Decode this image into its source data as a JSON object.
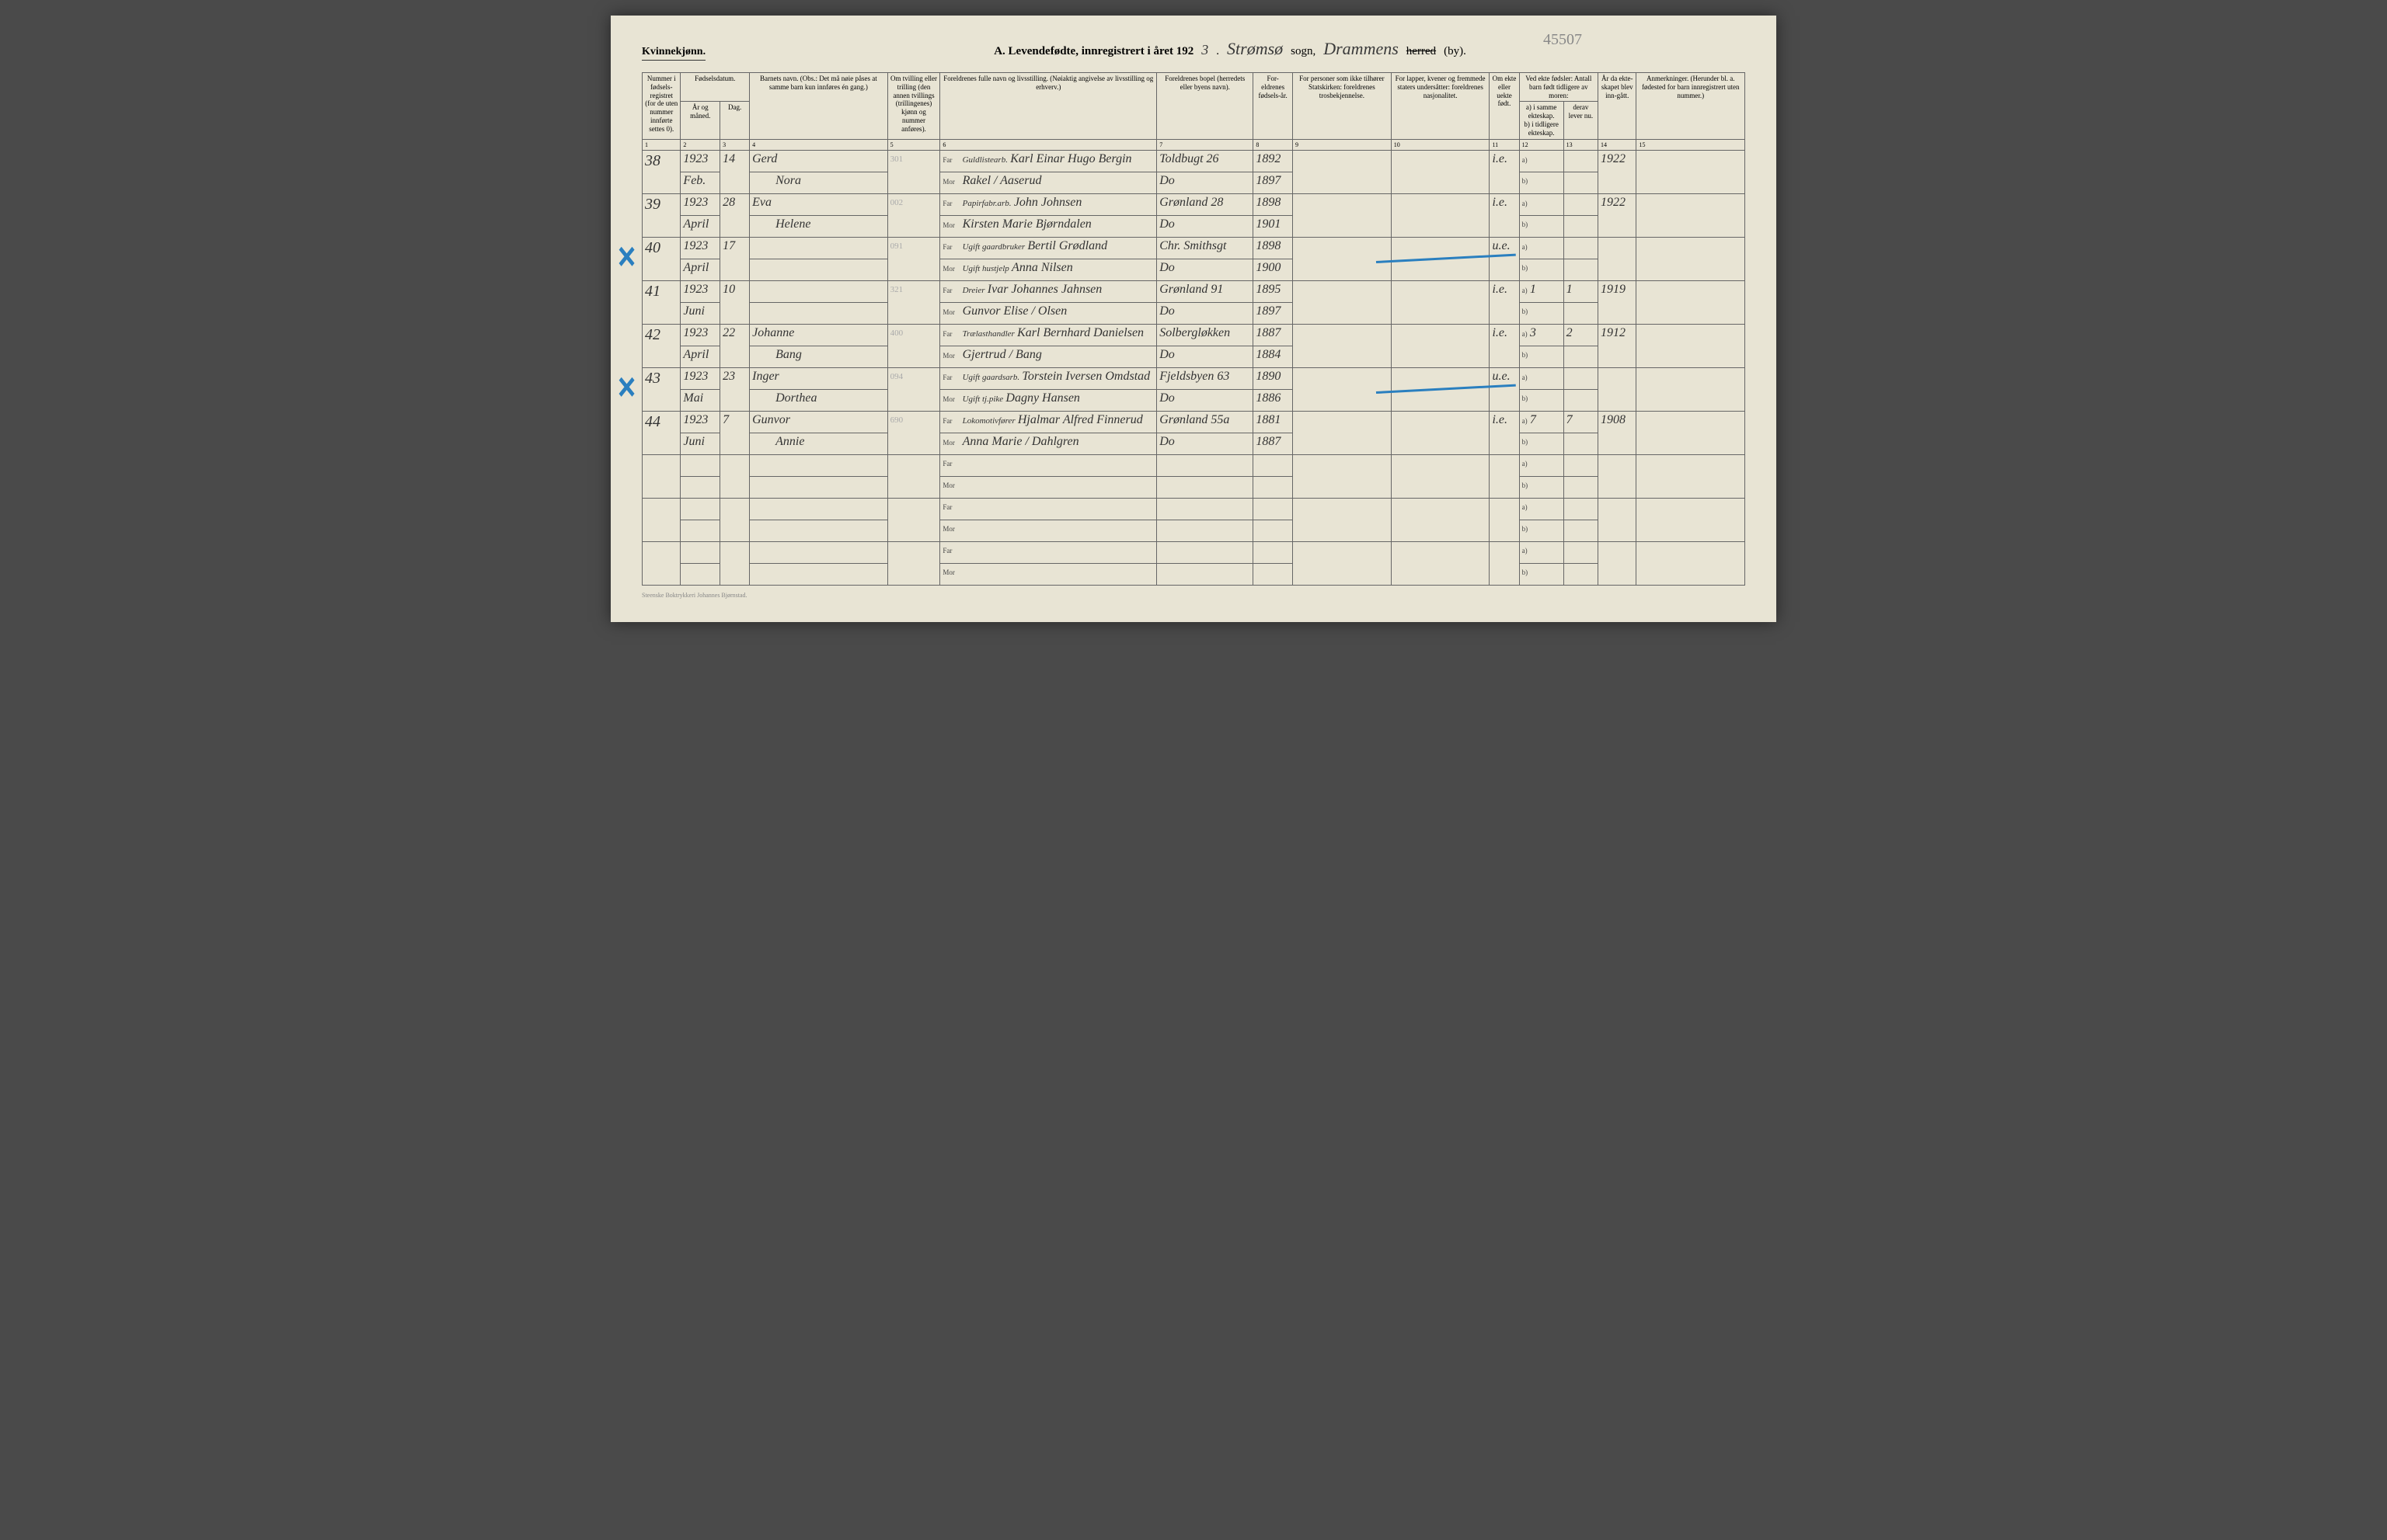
{
  "header": {
    "gender_label": "Kvinnekjønn.",
    "title_prefix": "A. Levendefødte, innregistrert i året 192",
    "year_suffix": "3",
    "parish_hw": "Strømsø",
    "sogn_label": "sogn,",
    "district_hw": "Drammens",
    "herred_label": "herred",
    "by_label": "(by).",
    "pencil_top": "45507"
  },
  "columns": {
    "c1": "Nummer i fødsels-registret (for de uten nummer innførte settes 0).",
    "c2_top": "Fødselsdatum.",
    "c2a": "År og måned.",
    "c2b": "Dag.",
    "c4": "Barnets navn.\n(Obs.: Det må nøie påses at samme barn kun innføres én gang.)",
    "c5": "Om tvilling eller trilling (den annen tvillings (trillingenes) kjønn og nummer anføres).",
    "c6": "Foreldrenes fulle navn og livsstilling.\n(Nøiaktig angivelse av livsstilling og erhverv.)",
    "c7": "Foreldrenes bopel (herredets eller byens navn).",
    "c8": "For-eldrenes fødsels-år.",
    "c9": "For personer som ikke tilhører Statskirken: foreldrenes trosbekjennelse.",
    "c10": "For lapper, kvener og fremmede staters undersåtter: foreldrenes nasjonalitet.",
    "c11": "Om ekte eller uekte født.",
    "c12_top": "Ved ekte fødsler: Antall barn født tidligere av moren:",
    "c12a": "a) i samme ekteskap.",
    "c12b": "b) i tidligere ekteskap.",
    "c13_top": "derav lever nu.",
    "c14": "År da ekte-skapet blev inn-gått.",
    "c15": "Anmerkninger.\n(Herunder bl. a. fødested for barn innregistrert uten nummer.)"
  },
  "colnums": [
    "1",
    "2",
    "3",
    "4",
    "5",
    "6",
    "7",
    "8",
    "9",
    "10",
    "11",
    "12",
    "13",
    "14",
    "15"
  ],
  "rows": [
    {
      "num": "38",
      "year": "1923",
      "month": "Feb.",
      "day": "14",
      "name1": "Gerd",
      "name2": "Nora",
      "pencil": "301",
      "far_occ": "Guldlistearb.",
      "far": "Karl Einar Hugo Bergin",
      "mor": "Rakel / Aaserud",
      "bopel_far": "Toldbugt 26",
      "bopel_mor": "Do",
      "fyear_far": "1892",
      "fyear_mor": "1897",
      "ekte": "i.e.",
      "c14": "1922"
    },
    {
      "num": "39",
      "year": "1923",
      "month": "April",
      "day": "28",
      "name1": "Eva",
      "name2": "Helene",
      "pencil": "002",
      "far_occ": "Papirfabr.arb.",
      "far": "John Johnsen",
      "mor": "Kirsten Marie Bjørndalen",
      "bopel_far": "Grønland 28",
      "bopel_mor": "Do",
      "fyear_far": "1898",
      "fyear_mor": "1901",
      "ekte": "i.e.",
      "c14": "1922"
    },
    {
      "num": "40",
      "year": "1923",
      "month": "April",
      "day": "17",
      "name1": "",
      "name2": "",
      "pencil": "091",
      "far_occ": "Ugift gaardbruker",
      "far": "Bertil Grødland",
      "mor_occ": "Ugift hustjelp",
      "mor": "Anna Nilsen",
      "bopel_far": "Chr. Smithsgt",
      "bopel_mor": "Do",
      "fyear_far": "1898",
      "fyear_mor": "1900",
      "ekte": "u.e.",
      "blue_x": true,
      "blue_line": true
    },
    {
      "num": "41",
      "year": "1923",
      "month": "Juni",
      "day": "10",
      "name1": "",
      "name2": "",
      "pencil": "321",
      "far_occ": "Dreier",
      "far": "Ivar Johannes Jahnsen",
      "mor": "Gunvor Elise / Olsen",
      "bopel_far": "Grønland 91",
      "bopel_mor": "Do",
      "fyear_far": "1895",
      "fyear_mor": "1897",
      "ekte": "i.e.",
      "c12a": "1",
      "c13": "1",
      "c14": "1919"
    },
    {
      "num": "42",
      "year": "1923",
      "month": "April",
      "day": "22",
      "name1": "Johanne",
      "name2": "Bang",
      "pencil": "400",
      "far_occ": "Trælasthandler",
      "far": "Karl Bernhard Danielsen",
      "mor": "Gjertrud / Bang",
      "bopel_far": "Solbergløkken",
      "bopel_mor": "Do",
      "fyear_far": "1887",
      "fyear_mor": "1884",
      "ekte": "i.e.",
      "c12a": "3",
      "c13": "2",
      "c14": "1912"
    },
    {
      "num": "43",
      "year": "1923",
      "month": "Mai",
      "day": "23",
      "name1": "Inger",
      "name2": "Dorthea",
      "pencil": "094",
      "far_occ": "Ugift gaardsarb.",
      "far": "Torstein Iversen Omdstad",
      "mor_occ": "Ugift tj.pike",
      "mor": "Dagny Hansen",
      "bopel_far": "Fjeldsbyen 63",
      "bopel_mor": "Do",
      "fyear_far": "1890",
      "fyear_mor": "1886",
      "ekte": "u.e.",
      "blue_x": true,
      "blue_line": true
    },
    {
      "num": "44",
      "year": "1923",
      "month": "Juni",
      "day": "7",
      "name1": "Gunvor",
      "name2": "Annie",
      "pencil": "690",
      "far_occ": "Lokomotivfører",
      "far": "Hjalmar Alfred Finnerud",
      "mor": "Anna Marie / Dahlgren",
      "bopel_far": "Grønland 55a",
      "bopel_mor": "Do",
      "fyear_far": "1881",
      "fyear_mor": "1887",
      "ekte": "i.e.",
      "c12a": "7",
      "c13": "7",
      "c14": "1908"
    }
  ],
  "empty_rows": 3,
  "footer": "Steenske Boktrykkeri Johannes Bjørnstad."
}
